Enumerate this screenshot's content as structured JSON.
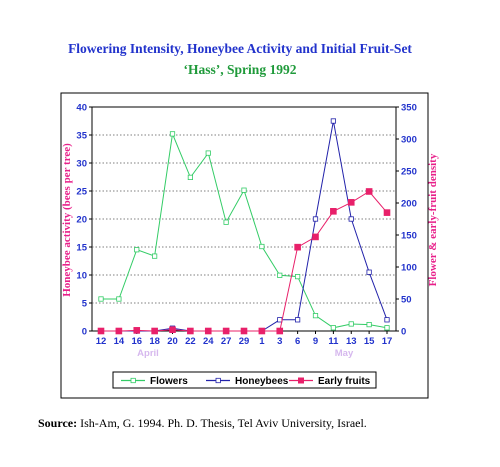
{
  "chart_data": {
    "type": "line",
    "title": "Flowering Intensity, Honeybee Activity and Initial Fruit-Set",
    "subtitle": "‘Hass’, Spring 1992",
    "ylabel_left": "Honeybee activity (bees per tree)",
    "ylabel_right": "Flower & early-fruit density",
    "categories": [
      "12",
      "14",
      "16",
      "18",
      "20",
      "22",
      "24",
      "27",
      "29",
      "1",
      "3",
      "6",
      "9",
      "11",
      "13",
      "15",
      "17"
    ],
    "month_labels": [
      "April",
      "May"
    ],
    "ylim_left": [
      0,
      40
    ],
    "yticks_left": [
      "0",
      "5",
      "10",
      "15",
      "20",
      "25",
      "30",
      "35",
      "40"
    ],
    "ylim_right": [
      0,
      350
    ],
    "yticks_right": [
      "0",
      "50",
      "100",
      "150",
      "200",
      "250",
      "300",
      "350"
    ],
    "grid": true,
    "legend_position": "bottom",
    "series": [
      {
        "name": "Flowers",
        "axis": "right",
        "color": "#33cc66",
        "marker": "open-square",
        "values": [
          50,
          50,
          127,
          117,
          308,
          240,
          278,
          170,
          220,
          132,
          87,
          85,
          24,
          5,
          11,
          10,
          5
        ]
      },
      {
        "name": "Honeybees",
        "axis": "left",
        "color": "#2222aa",
        "marker": "open-square",
        "values": [
          0,
          0,
          0,
          0,
          0.5,
          0,
          0,
          0,
          0,
          0,
          2,
          2,
          20,
          37.5,
          20,
          10.5,
          2
        ]
      },
      {
        "name": "Early fruits",
        "axis": "right",
        "color": "#e8206a",
        "marker": "filled-square",
        "values": [
          0,
          0,
          1,
          0,
          2,
          0,
          0,
          0,
          0,
          0,
          0,
          131,
          147,
          187,
          201,
          218,
          185
        ]
      }
    ]
  },
  "source": {
    "label": "Source:",
    "text": "Ish-Am,  G. 1994. Ph. D. Thesis, Tel Aviv University, Israel."
  }
}
